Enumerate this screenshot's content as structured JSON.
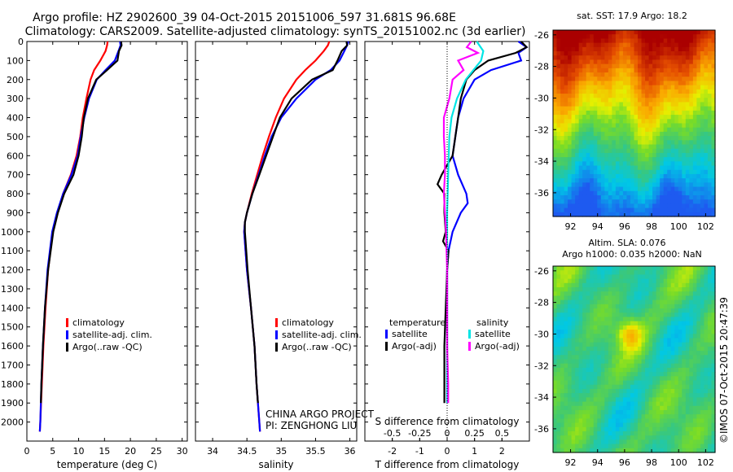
{
  "header": {
    "line1": "Argo profile: HZ 2902600_39 04-Oct-2015 20151006_597 31.681S 96.68E",
    "line2": "Climatology: CARS2009. Satellite-adjusted climatology: synTS_20151002.nc (3d earlier)"
  },
  "watermark": "©IMOS 07-Oct-2015 20:47:39",
  "project_note": [
    "CHINA ARGO PROJECT",
    "PI: ZENGHONG LIU"
  ],
  "colors": {
    "climatology": "#ff0000",
    "satellite": "#0000ff",
    "argo": "#000000",
    "sat_salinity": "#00e5e5",
    "argo_salinity": "#ff00ff"
  },
  "chart_data": [
    {
      "type": "line",
      "panel": "temperature",
      "xlabel": "temperature (deg C)",
      "ylabel": "",
      "xlim": [
        0,
        31
      ],
      "ylim": [
        2100,
        0
      ],
      "x_ticks": [
        0,
        5,
        10,
        15,
        20,
        25,
        30
      ],
      "y_ticks": [
        0,
        100,
        200,
        300,
        400,
        500,
        600,
        700,
        800,
        900,
        1000,
        1100,
        1200,
        1300,
        1400,
        1500,
        1600,
        1700,
        1800,
        1900,
        2000
      ],
      "legend": [
        "climatology",
        "satellite-adj. clim.",
        "Argo(..raw -QC)"
      ],
      "series": [
        {
          "name": "climatology",
          "depth": [
            0,
            20,
            50,
            100,
            150,
            200,
            300,
            400,
            500,
            600,
            700,
            800,
            900,
            1000,
            1200,
            1400,
            1600,
            1800,
            2000,
            2050
          ],
          "values": [
            15.6,
            15.5,
            15.2,
            14.2,
            13.0,
            12.3,
            11.5,
            10.8,
            10.3,
            9.6,
            8.5,
            7.0,
            5.9,
            5.0,
            4.1,
            3.6,
            3.2,
            2.9,
            2.6,
            2.5
          ]
        },
        {
          "name": "satellite-adj. clim.",
          "depth": [
            0,
            20,
            50,
            100,
            150,
            200,
            300,
            400,
            500,
            600,
            700,
            800,
            900,
            1000,
            1200,
            1400,
            1600,
            1800,
            2000,
            2050
          ],
          "values": [
            18.0,
            18.1,
            17.7,
            17.0,
            15.2,
            13.5,
            12.0,
            11.1,
            10.4,
            9.8,
            8.6,
            7.0,
            5.8,
            4.9,
            4.0,
            3.5,
            3.1,
            2.8,
            2.6,
            2.5
          ]
        },
        {
          "name": "Argo(..raw -QC)",
          "depth": [
            0,
            20,
            50,
            100,
            150,
            200,
            300,
            400,
            500,
            600,
            700,
            800,
            900,
            1000,
            1200,
            1400,
            1600,
            1800,
            1900
          ],
          "values": [
            18.2,
            18.3,
            17.8,
            17.5,
            15.5,
            13.4,
            11.8,
            11.0,
            10.6,
            10.0,
            9.0,
            7.2,
            6.0,
            5.1,
            4.1,
            3.5,
            3.1,
            2.8,
            2.7
          ]
        }
      ]
    },
    {
      "type": "line",
      "panel": "salinity",
      "xlabel": "salinity",
      "xlim": [
        33.75,
        36.1
      ],
      "ylim": [
        2100,
        0
      ],
      "x_ticks": [
        34,
        34.5,
        35,
        35.5,
        36
      ],
      "legend": [
        "climatology",
        "satellite-adj. clim.",
        "Argo(..raw -QC)"
      ],
      "series": [
        {
          "name": "climatology",
          "depth": [
            0,
            20,
            50,
            100,
            150,
            200,
            300,
            400,
            500,
            600,
            700,
            800,
            900,
            950,
            1000,
            1200,
            1400,
            1600,
            1800,
            2000,
            2050
          ],
          "values": [
            35.7,
            35.68,
            35.62,
            35.5,
            35.35,
            35.22,
            35.04,
            34.92,
            34.82,
            34.73,
            34.65,
            34.57,
            34.5,
            34.47,
            34.46,
            34.5,
            34.56,
            34.61,
            34.64,
            34.68,
            34.69
          ]
        },
        {
          "name": "satellite-adj. clim.",
          "depth": [
            0,
            20,
            50,
            100,
            150,
            200,
            300,
            400,
            500,
            600,
            700,
            800,
            900,
            950,
            1000,
            1200,
            1400,
            1600,
            1800,
            2000,
            2050
          ],
          "values": [
            35.98,
            35.96,
            35.92,
            35.85,
            35.72,
            35.5,
            35.22,
            35.0,
            34.86,
            34.76,
            34.67,
            34.58,
            34.5,
            34.47,
            34.46,
            34.5,
            34.56,
            34.61,
            34.64,
            34.68,
            34.69
          ]
        },
        {
          "name": "Argo(..raw -QC)",
          "depth": [
            0,
            20,
            50,
            100,
            150,
            200,
            300,
            400,
            500,
            600,
            700,
            800,
            900,
            950,
            1000,
            1200,
            1400,
            1600,
            1800,
            1900
          ],
          "values": [
            35.95,
            35.96,
            35.88,
            35.82,
            35.75,
            35.45,
            35.15,
            34.98,
            34.88,
            34.78,
            34.68,
            34.58,
            34.5,
            34.47,
            34.47,
            34.51,
            34.56,
            34.61,
            34.64,
            34.66
          ]
        }
      ]
    },
    {
      "type": "line",
      "panel": "difference",
      "xlabel": "T difference from climatology",
      "xlabel2": "S difference from climatology",
      "xlim": [
        -3,
        3
      ],
      "ylim": [
        2100,
        0
      ],
      "x_ticks": [
        -2,
        -1,
        0,
        1,
        2
      ],
      "x2_ticks": [
        -0.5,
        -0.25,
        0,
        0.25,
        0.5
      ],
      "legend_groups": [
        {
          "title": "temperature",
          "items": [
            "satellite",
            "Argo(-adj)"
          ]
        },
        {
          "title": "salinity",
          "items": [
            "satellite",
            "Argo(-adj)"
          ]
        }
      ],
      "series": [
        {
          "name": "satellite (T)",
          "depth": [
            0,
            30,
            60,
            100,
            150,
            200,
            300,
            400,
            500,
            600,
            700,
            800,
            850,
            900,
            1000,
            1100,
            1200,
            1400,
            1600,
            1800,
            1900
          ],
          "values": [
            2.6,
            2.9,
            2.6,
            2.7,
            1.6,
            1.0,
            0.6,
            0.4,
            0.3,
            0.2,
            0.4,
            0.7,
            0.75,
            0.5,
            0.2,
            0.05,
            0.0,
            0.0,
            0.0,
            0.0,
            0.0
          ]
        },
        {
          "name": "Argo(-adj) (T)",
          "depth": [
            0,
            30,
            60,
            100,
            150,
            200,
            300,
            400,
            500,
            600,
            700,
            750,
            800,
            900,
            1000,
            1050,
            1100,
            1200,
            1400,
            1600,
            1800,
            1900
          ],
          "values": [
            2.7,
            2.9,
            2.5,
            1.5,
            1.0,
            0.7,
            0.5,
            0.4,
            0.3,
            0.2,
            -0.2,
            -0.35,
            -0.1,
            -0.1,
            -0.05,
            -0.15,
            0.05,
            0.0,
            -0.05,
            -0.1,
            -0.1,
            -0.1
          ]
        },
        {
          "name": "satellite (S)",
          "depth": [
            0,
            50,
            100,
            200,
            300,
            400,
            500,
            700,
            900,
            1100,
            1300,
            1500,
            1700,
            1900
          ],
          "values": [
            0.27,
            0.33,
            0.31,
            0.17,
            0.09,
            0.04,
            0.02,
            0.01,
            0.0,
            0.0,
            0.0,
            0.0,
            0.0,
            0.0
          ]
        },
        {
          "name": "Argo(-adj) (S)",
          "depth": [
            0,
            30,
            60,
            100,
            150,
            200,
            300,
            400,
            500,
            600,
            700,
            800,
            900,
            1000,
            1200,
            1400,
            1600,
            1800,
            1900
          ],
          "values": [
            0.22,
            0.18,
            0.28,
            0.1,
            0.15,
            0.05,
            0.02,
            -0.03,
            -0.03,
            -0.02,
            -0.02,
            -0.03,
            -0.02,
            -0.01,
            0.0,
            0.0,
            0.0,
            0.01,
            0.01
          ]
        }
      ]
    },
    {
      "type": "heatmap",
      "panel": "sst",
      "title": "sat. SST: 17.9  Argo: 18.2",
      "x_ticks": [
        92,
        94,
        96,
        98,
        100,
        102
      ],
      "y_ticks": [
        -26,
        -28,
        -30,
        -32,
        -34,
        -36
      ],
      "xlim": [
        90.7,
        102.7
      ],
      "ylim": [
        -37.5,
        -25.7
      ]
    },
    {
      "type": "heatmap",
      "panel": "sla",
      "title_lines": [
        "Altim. SLA: 0.076",
        "Argo h1000: 0.035  h2000: NaN"
      ],
      "x_ticks": [
        92,
        94,
        96,
        98,
        100,
        102
      ],
      "y_ticks": [
        -26,
        -28,
        -30,
        -32,
        -34,
        -36
      ],
      "xlim": [
        90.7,
        102.7
      ],
      "ylim": [
        -37.5,
        -25.7
      ]
    }
  ]
}
